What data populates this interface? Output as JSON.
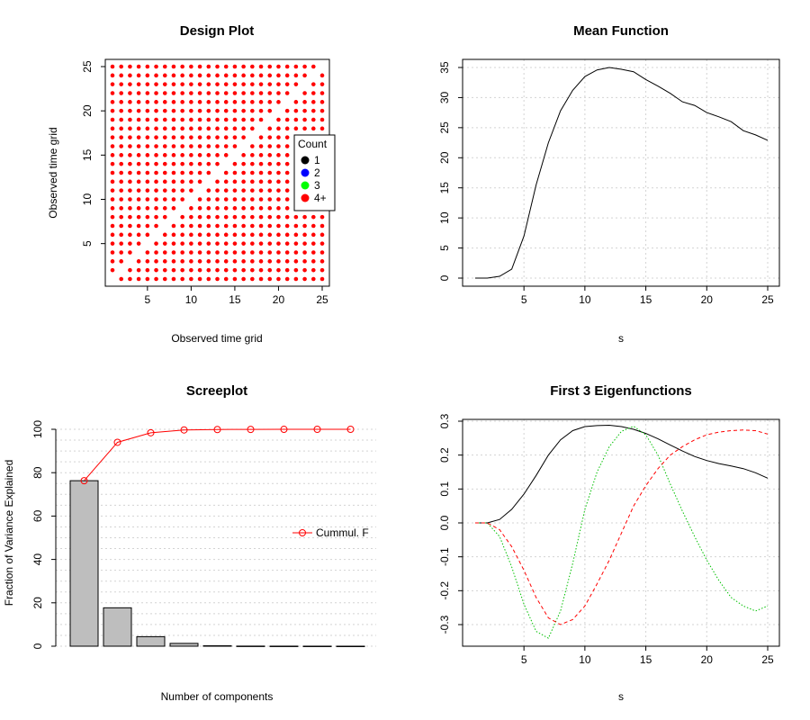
{
  "colors": {
    "design_points": "#ff0000",
    "mean_line": "#000000",
    "bar_fill": "#bebebe",
    "cumulative_line": "#ff0000",
    "eigen_1": "#000000",
    "eigen_2": "#00c000",
    "eigen_3": "#ff0000",
    "grid": "#d3d3d3"
  },
  "chart_data": [
    {
      "type": "scatter",
      "title": "Design Plot",
      "xlabel": "Observed time grid",
      "ylabel": "Observed time grid",
      "xlim": [
        1,
        25
      ],
      "ylim": [
        1,
        25
      ],
      "xticks": [
        "5",
        "10",
        "15",
        "20",
        "25"
      ],
      "yticks": [
        "5",
        "10",
        "15",
        "20",
        "25"
      ],
      "grid_points": "all pairs of integer times 1–25 except the diagonal",
      "legend": {
        "title": "Count",
        "placement": "right",
        "entries": [
          {
            "label": "1",
            "color": "#000000"
          },
          {
            "label": "2",
            "color": "#0000ff"
          },
          {
            "label": "3",
            "color": "#00ff00"
          },
          {
            "label": "4+",
            "color": "#ff0000"
          }
        ]
      }
    },
    {
      "type": "line",
      "title": "Mean Function",
      "xlabel": "s",
      "ylabel": "",
      "grid": true,
      "xlim": [
        1,
        25
      ],
      "ylim": [
        0,
        35
      ],
      "xticks": [
        "5",
        "10",
        "15",
        "20",
        "25"
      ],
      "yticks": [
        "0",
        "5",
        "10",
        "15",
        "20",
        "25",
        "30",
        "35"
      ],
      "x": [
        1,
        2,
        3,
        4,
        5,
        6,
        7,
        8,
        9,
        10,
        11,
        12,
        13,
        14,
        15,
        16,
        17,
        18,
        19,
        20,
        21,
        22,
        23,
        24,
        25
      ],
      "y": [
        0,
        0,
        0.3,
        1.5,
        7,
        15.5,
        22.5,
        27.8,
        31.2,
        33.5,
        34.6,
        35.0,
        34.7,
        34.3,
        33.0,
        31.9,
        30.7,
        29.3,
        28.7,
        27.5,
        26.8,
        26.0,
        24.5,
        23.8,
        22.9
      ]
    },
    {
      "type": "bar",
      "title": "Screeplot",
      "xlabel": "Number of components",
      "ylabel": "Fraction of Variance Explained",
      "grid": true,
      "ylim": [
        0,
        100
      ],
      "yticks": [
        "0",
        "20",
        "40",
        "60",
        "80",
        "100"
      ],
      "values": [
        76.3,
        17.7,
        4.4,
        1.3,
        0.2,
        0.05,
        0.03,
        0.02,
        0.01
      ],
      "series": [
        {
          "name": "Cummul. FVE",
          "values": [
            76.3,
            94.0,
            98.4,
            99.7,
            99.9,
            99.95,
            99.98,
            100.0,
            100.0
          ]
        }
      ],
      "legend": {
        "label": "Cummul. F",
        "placement": "right"
      }
    },
    {
      "type": "line",
      "title": "First 3 Eigenfunctions",
      "xlabel": "s",
      "ylabel": "",
      "grid": true,
      "xlim": [
        1,
        25
      ],
      "ylim": [
        -0.33,
        0.3
      ],
      "xticks": [
        "5",
        "10",
        "15",
        "20",
        "25"
      ],
      "yticks": [
        "-0.3",
        "-0.2",
        "-0.1",
        "0.0",
        "0.1",
        "0.2",
        "0.3"
      ],
      "x": [
        1,
        2,
        3,
        4,
        5,
        6,
        7,
        8,
        9,
        10,
        11,
        12,
        13,
        14,
        15,
        16,
        17,
        18,
        19,
        20,
        21,
        22,
        23,
        24,
        25
      ],
      "series": [
        {
          "values": [
            0,
            0,
            0.01,
            0.04,
            0.085,
            0.14,
            0.2,
            0.245,
            0.272,
            0.284,
            0.287,
            0.288,
            0.284,
            0.276,
            0.264,
            0.248,
            0.23,
            0.212,
            0.196,
            0.184,
            0.175,
            0.168,
            0.16,
            0.148,
            0.132
          ],
          "style": "solid"
        },
        {
          "values": [
            0,
            0,
            -0.04,
            -0.13,
            -0.24,
            -0.32,
            -0.34,
            -0.26,
            -0.12,
            0.04,
            0.15,
            0.225,
            0.27,
            0.285,
            0.26,
            0.2,
            0.115,
            0.035,
            -0.04,
            -0.11,
            -0.17,
            -0.22,
            -0.245,
            -0.26,
            -0.245
          ],
          "style": "dotted"
        },
        {
          "values": [
            0,
            0,
            -0.02,
            -0.07,
            -0.14,
            -0.22,
            -0.28,
            -0.3,
            -0.285,
            -0.245,
            -0.18,
            -0.11,
            -0.03,
            0.05,
            0.11,
            0.16,
            0.2,
            0.225,
            0.245,
            0.26,
            0.268,
            0.272,
            0.274,
            0.272,
            0.262
          ],
          "style": "dashed"
        }
      ]
    }
  ]
}
